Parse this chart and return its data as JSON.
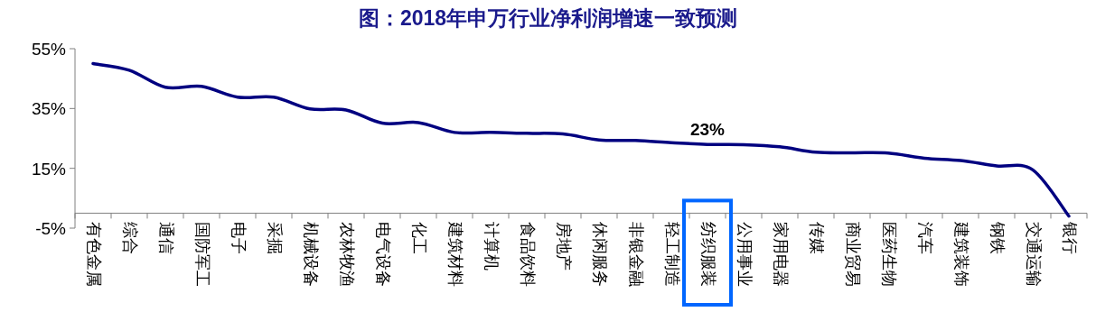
{
  "chart_data": {
    "type": "line",
    "title": "图：2018年申万行业净利润增速一致预测",
    "categories": [
      "有色金属",
      "综合",
      "通信",
      "国防军工",
      "电子",
      "采掘",
      "机械设备",
      "农林牧渔",
      "电气设备",
      "化工",
      "建筑材料",
      "计算机",
      "食品饮料",
      "房地产",
      "休闲服务",
      "非银金融",
      "轻工制造",
      "纺织服装",
      "公用事业",
      "家用电器",
      "传媒",
      "商业贸易",
      "医药生物",
      "汽车",
      "建筑装饰",
      "钢铁",
      "交通运输",
      "银行"
    ],
    "series": [
      {
        "color": "#000080",
        "values": [
          50,
          47.8,
          42.1,
          42.4,
          38.8,
          38.8,
          34.9,
          34.5,
          30.1,
          30.3,
          27,
          27,
          26.7,
          26.5,
          24.5,
          24.3,
          23.6,
          23,
          22.9,
          22.2,
          20.4,
          20.2,
          20.1,
          18.4,
          17.6,
          15.8,
          14.5,
          -1
        ]
      }
    ],
    "ylim": [
      -5,
      55
    ],
    "yticks": [
      {
        "value": -5,
        "label": "-5%"
      },
      {
        "value": 15,
        "label": "15%"
      },
      {
        "value": 35,
        "label": "35%"
      },
      {
        "value": 55,
        "label": "55%"
      }
    ],
    "annotations": [
      {
        "text": "23%",
        "x": "纺织服装",
        "y": 23
      }
    ],
    "grid": false,
    "marker": "none",
    "line_style": "solid"
  }
}
